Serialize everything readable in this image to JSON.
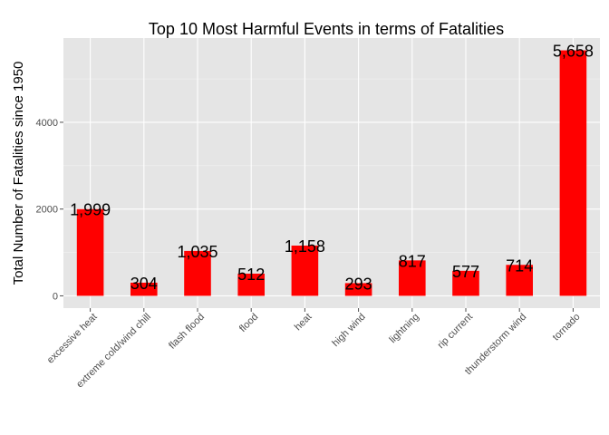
{
  "chart_data": {
    "type": "bar",
    "title": "Top 10 Most Harmful Events in terms of Fatalities",
    "xlabel": "",
    "ylabel": "Total Number of Fatalities since 1950",
    "categories": [
      "excessive heat",
      "extreme cold/wind chill",
      "flash flood",
      "flood",
      "heat",
      "high wind",
      "lightning",
      "rip current",
      "thunderstorm wind",
      "tornado"
    ],
    "values": [
      1999,
      304,
      1035,
      512,
      1158,
      293,
      817,
      577,
      714,
      5658
    ],
    "value_labels": [
      "1,999",
      "304",
      "1,035",
      "512",
      "1,158",
      "293",
      "817",
      "577",
      "714",
      "5,658"
    ],
    "yticks": [
      0,
      2000,
      4000
    ],
    "ytick_labels": [
      "0",
      "2000",
      "4000"
    ],
    "ylim": [
      -283,
      5941
    ],
    "grid": true,
    "colors": {
      "bar": "#ff0000",
      "panel": "#e5e5e5",
      "grid_major": "#ffffff",
      "grid_minor": "#f2f2f2"
    }
  }
}
